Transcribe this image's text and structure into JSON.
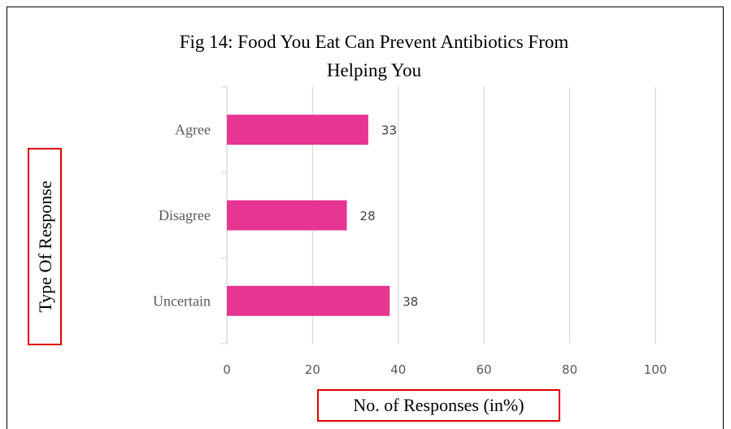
{
  "chart_data": {
    "type": "bar",
    "orientation": "horizontal",
    "title": "Fig 14: Food You Eat Can Prevent Antibiotics From Helping You",
    "title_lines": [
      "Fig 14: Food You Eat Can Prevent Antibiotics From",
      "Helping You"
    ],
    "categories": [
      "Agree",
      "Disagree",
      "Uncertain"
    ],
    "values": [
      33,
      28,
      38
    ],
    "xlabel": "No. of Responses (in%)",
    "ylabel": "Type Of Response",
    "xlim": [
      0,
      100
    ],
    "xticks": [
      0,
      20,
      40,
      60,
      80,
      100
    ],
    "grid": true,
    "bar_color": "#E73592",
    "label_box_color": "#E00000"
  }
}
